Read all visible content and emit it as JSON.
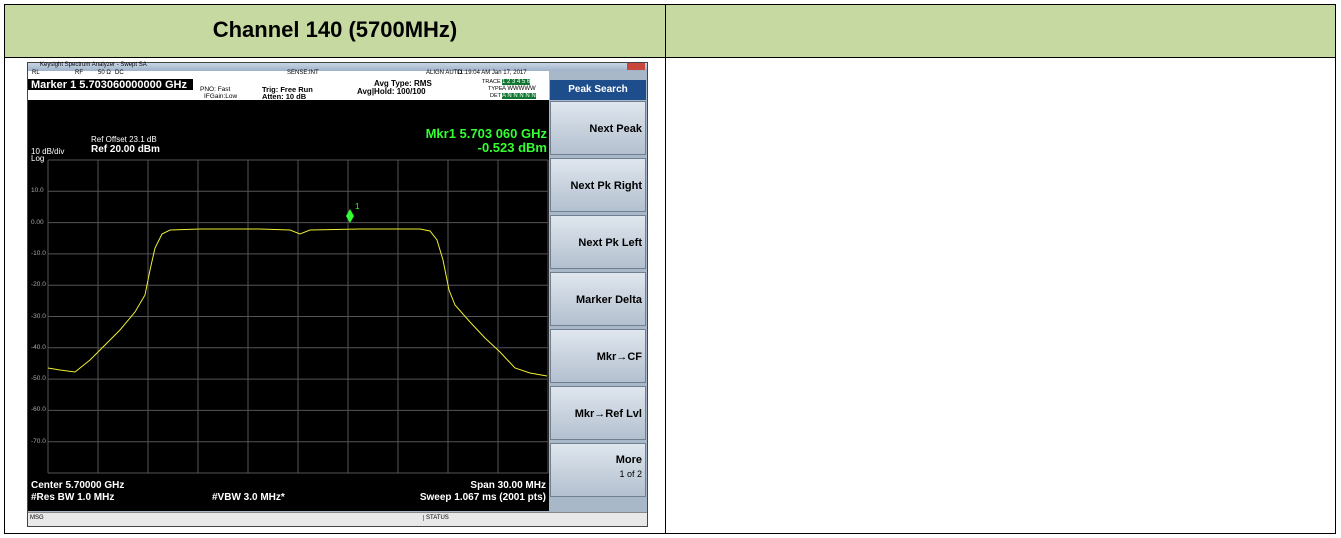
{
  "table": {
    "header": {
      "title": "Channel 140 (5700MHz)"
    }
  },
  "analyzer": {
    "window_title": "Keysight Spectrum Analyzer - Swept SA",
    "status_line": [
      "RL",
      "RF",
      "50 Ω",
      "DC",
      "SENSE:INT",
      "ALIGN AUTO",
      "11:19:04 AM Jan 17, 2017"
    ],
    "marker_readout": "Marker 1 5.703060000000 GHz",
    "settings": {
      "pno": "PNO: Fast",
      "ifgain": "IFGain:Low",
      "trig": "Trig: Free Run",
      "atten": "Atten: 10 dB",
      "avg_type": "Avg Type: RMS",
      "avg_hold": "Avg|Hold: 100/100"
    },
    "trace_info": {
      "trace": "TRACE",
      "trace_nums": "1 2 3 4 5 6",
      "type": "TYPE",
      "type_val": "A WWWWW",
      "det": "DET",
      "det_val": "A N N N N N"
    },
    "ref_offset": "Ref Offset 23.1 dB",
    "scale": "10 dB/div",
    "ref_level": "Ref 20.00 dBm",
    "log": "Log",
    "marker_freq": "Mkr1 5.703 060 GHz",
    "marker_level": "-0.523 dBm",
    "marker_id": "1",
    "y_labels": [
      "10.0",
      "0.00",
      "-10.0",
      "-20.0",
      "-30.0",
      "-40.0",
      "-50.0",
      "-60.0",
      "-70.0"
    ],
    "center": "Center 5.70000 GHz",
    "res_bw": "#Res BW 1.0 MHz",
    "vbw": "#VBW 3.0 MHz*",
    "span": "Span 30.00 MHz",
    "sweep": "Sweep  1.067 ms (2001 pts)",
    "menu_title": "Peak Search",
    "softkeys": [
      "Next Peak",
      "Next Pk Right",
      "Next Pk Left",
      "Marker Delta",
      "Mkr→CF",
      "Mkr→Ref Lvl",
      "More"
    ],
    "softkey_sub": "1 of 2",
    "msg": "MSG",
    "status": "STATUS"
  }
}
